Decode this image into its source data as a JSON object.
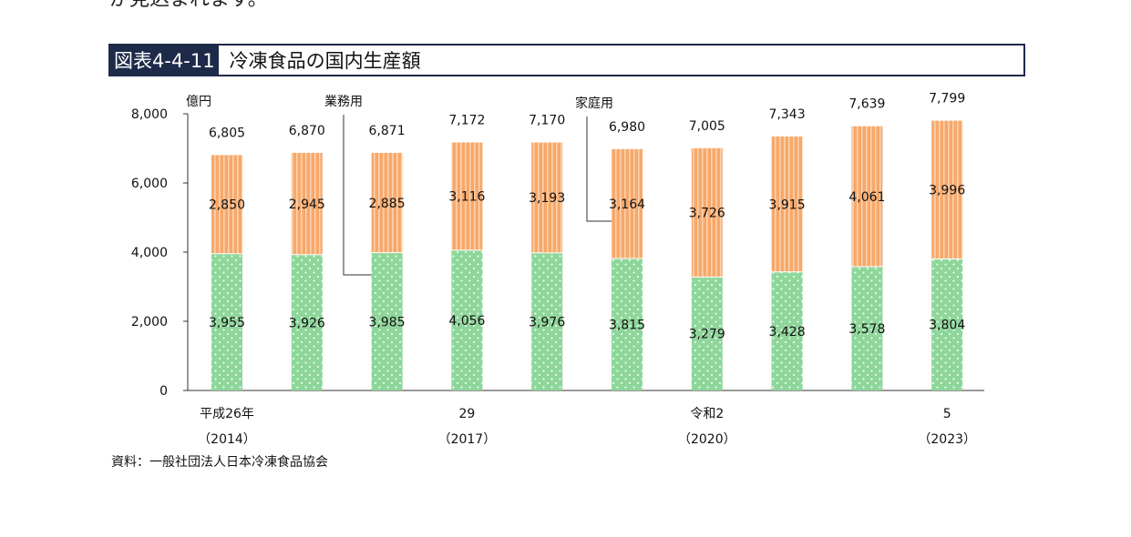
{
  "page": {
    "top_fragment": "が見込まれます。"
  },
  "figure": {
    "number": "図表4-4-11",
    "title": "冷凍食品の国内生産額"
  },
  "source": "資料：一般社団法人日本冷凍食品協会",
  "colors": {
    "business": "#8fd69b",
    "household": "#f7a86a",
    "household_stripe": "#fbd2ae",
    "axis": "#333333"
  },
  "chart_data": {
    "type": "bar",
    "stacked": true,
    "ylabel": "億円",
    "ylim": [
      0,
      8000
    ],
    "yticks": [
      "0",
      "2,000",
      "4,000",
      "6,000",
      "8,000"
    ],
    "ytick_values": [
      0,
      2000,
      4000,
      6000,
      8000
    ],
    "x_labels": [
      {
        "index": 0,
        "line1": "平成26年",
        "line2": "（2014）"
      },
      {
        "index": 3,
        "line1": "29",
        "line2": "（2017）"
      },
      {
        "index": 6,
        "line1": "令和2",
        "line2": "（2020）"
      },
      {
        "index": 9,
        "line1": "5",
        "line2": "（2023）"
      }
    ],
    "grid": false,
    "series": [
      {
        "name": "業務用",
        "values": [
          3955,
          3926,
          3985,
          4056,
          3976,
          3815,
          3279,
          3428,
          3578,
          3804
        ],
        "labels": [
          "3,955",
          "3,926",
          "3,985",
          "4,056",
          "3,976",
          "3,815",
          "3,279",
          "3,428",
          "3,578",
          "3,804"
        ]
      },
      {
        "name": "家庭用",
        "values": [
          2850,
          2945,
          2885,
          3116,
          3193,
          3164,
          3726,
          3915,
          4061,
          3996
        ],
        "labels": [
          "2,850",
          "2,945",
          "2,885",
          "3,116",
          "3,193",
          "3,164",
          "3,726",
          "3,915",
          "4,061",
          "3,996"
        ]
      }
    ],
    "totals": [
      6805,
      6870,
      6871,
      7172,
      7170,
      6980,
      7005,
      7343,
      7639,
      7799
    ],
    "total_labels": [
      "6,805",
      "6,870",
      "6,871",
      "7,172",
      "7,170",
      "6,980",
      "7,005",
      "7,343",
      "7,639",
      "7,799"
    ],
    "annotations": [
      {
        "series": 0,
        "bar": 2,
        "text": "業務用"
      },
      {
        "series": 1,
        "bar": 5,
        "text": "家庭用"
      }
    ]
  }
}
